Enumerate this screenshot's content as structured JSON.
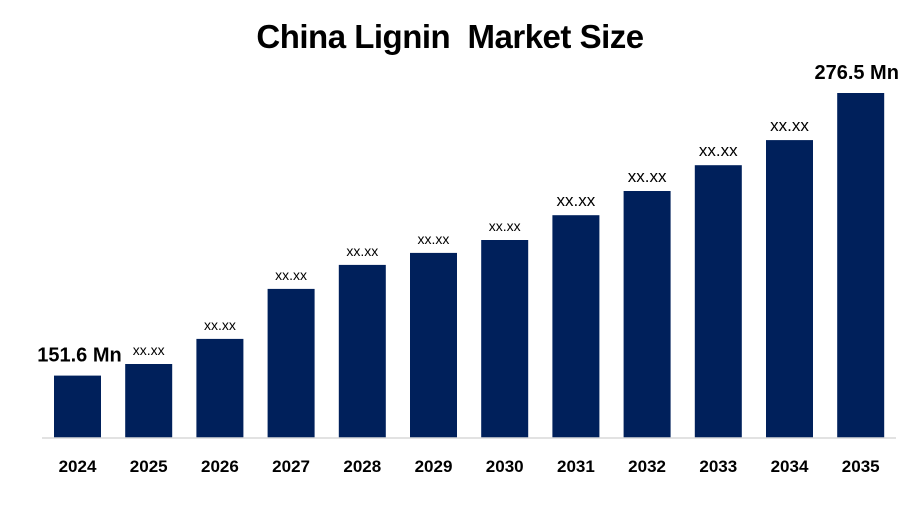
{
  "chart_data": {
    "type": "bar",
    "title": "China Lignin  Market Size",
    "xlabel": "",
    "ylabel": "",
    "categories": [
      "2024",
      "2025",
      "2026",
      "2027",
      "2028",
      "2029",
      "2030",
      "2031",
      "2032",
      "2033",
      "2034",
      "2035"
    ],
    "values": [
      151.6,
      156.7,
      167.8,
      189.9,
      200.5,
      205.8,
      211.5,
      222.5,
      233.2,
      244.6,
      255.7,
      276.5
    ],
    "data_labels": [
      "151.6 Mn",
      "xx.xx",
      "xx.xx",
      "xx.xx",
      "xx.xx",
      "xx.xx",
      "xx.xx",
      "xx.xx",
      "xx.xx",
      "xx.xx",
      "xx.xx",
      "276.5 Mn"
    ],
    "ylim": [
      124,
      276.5
    ],
    "grid": false,
    "legend": "none",
    "colors": {
      "bar": "#00205b",
      "axis": "#d9d9d9",
      "text": "#000000"
    }
  }
}
